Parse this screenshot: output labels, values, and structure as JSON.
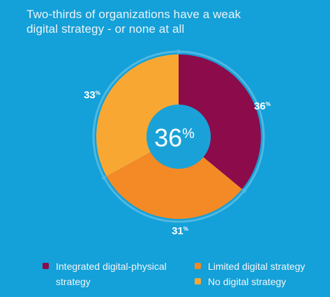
{
  "title": {
    "line1": "Two-thirds of organizations have a weak",
    "line2": "digital strategy - or none at all"
  },
  "chart_data": {
    "type": "pie",
    "title": "Two-thirds of organizations have a weak digital strategy - or none at all",
    "center_label": "36",
    "center_unit": "%",
    "slices": [
      {
        "name": "Integrated digital-physical strategy",
        "value": 36,
        "label": "36",
        "unit": "%",
        "color": "#8c0b4a"
      },
      {
        "name": "Limited digital strategy",
        "value": 31,
        "label": "31",
        "unit": "%",
        "color": "#f38a25"
      },
      {
        "name": "No digital strategy",
        "value": 33,
        "label": "33",
        "unit": "%",
        "color": "#f8a832"
      }
    ],
    "legend_placement": "bottom"
  },
  "legend": {
    "items": [
      {
        "label_line1": "Integrated digital-physical",
        "label_line2": "strategy",
        "color": "#8c0b4a"
      },
      {
        "label_line1": "Limited digital strategy",
        "label_line2": "",
        "color": "#f38a25"
      },
      {
        "label_line1": "No digital strategy",
        "label_line2": "",
        "color": "#f8a832"
      }
    ]
  },
  "colors": {
    "background": "#14a0d8",
    "hole": "#1aa2d8",
    "ring_outline": "#4fb8e2"
  }
}
